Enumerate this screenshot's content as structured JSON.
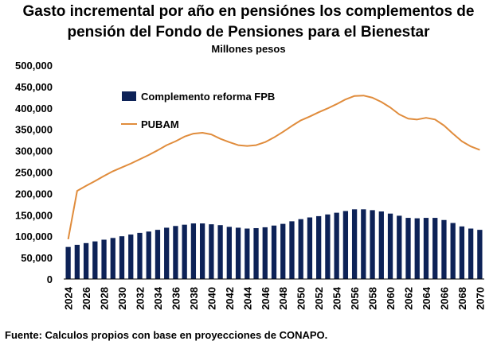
{
  "chart_data": {
    "type": "bar",
    "title": "Gasto incremental por año en pensiónes los complementos de pensión del Fondo de Pensiones para el Bienestar",
    "subtitle": "Millones pesos",
    "xlabel": "",
    "ylabel": "",
    "ylim": [
      0,
      500000
    ],
    "yticks": [
      "0",
      "50,000",
      "100,000",
      "150,000",
      "200,000",
      "250,000",
      "300,000",
      "350,000",
      "400,000",
      "450,000",
      "500,000"
    ],
    "ytick_values": [
      0,
      50000,
      100000,
      150000,
      200000,
      250000,
      300000,
      350000,
      400000,
      450000,
      500000
    ],
    "x": [
      2024,
      2025,
      2026,
      2027,
      2028,
      2029,
      2030,
      2031,
      2032,
      2033,
      2034,
      2035,
      2036,
      2037,
      2038,
      2039,
      2040,
      2041,
      2042,
      2043,
      2044,
      2045,
      2046,
      2047,
      2048,
      2049,
      2050,
      2051,
      2052,
      2053,
      2054,
      2055,
      2056,
      2057,
      2058,
      2059,
      2060,
      2061,
      2062,
      2063,
      2064,
      2065,
      2066,
      2067,
      2068,
      2069,
      2070
    ],
    "xtick_labels": [
      "2024",
      "2026",
      "2028",
      "2030",
      "2032",
      "2034",
      "2036",
      "2038",
      "2040",
      "2042",
      "2044",
      "2046",
      "2048",
      "2050",
      "2052",
      "2054",
      "2056",
      "2058",
      "2060",
      "2062",
      "2064",
      "2066",
      "2068",
      "2070"
    ],
    "series": [
      {
        "name": "Complemento reforma FPB",
        "kind": "bar",
        "color": "#0d2257",
        "values": [
          75000,
          80000,
          84000,
          88000,
          92000,
          96000,
          100000,
          104000,
          108000,
          111000,
          115000,
          120000,
          124000,
          127000,
          130000,
          130000,
          128000,
          126000,
          122000,
          120000,
          118000,
          119000,
          121000,
          125000,
          129000,
          135000,
          140000,
          144000,
          147000,
          151000,
          155000,
          159000,
          163000,
          163000,
          161000,
          158000,
          153000,
          148000,
          143000,
          142000,
          143000,
          143000,
          138000,
          131000,
          123000,
          118000,
          115000
        ]
      },
      {
        "name": "PUBAM",
        "kind": "line",
        "color": "#e08c3c",
        "values": [
          93000,
          206000,
          218000,
          229000,
          241000,
          252000,
          261000,
          270000,
          280000,
          290000,
          301000,
          313000,
          322000,
          333000,
          340000,
          342000,
          338000,
          328000,
          320000,
          313000,
          311000,
          313000,
          320000,
          331000,
          344000,
          358000,
          371000,
          380000,
          390000,
          399000,
          409000,
          420000,
          428000,
          429000,
          424000,
          414000,
          401000,
          385000,
          375000,
          373000,
          377000,
          373000,
          359000,
          340000,
          322000,
          310000,
          302000
        ]
      }
    ],
    "legend": {
      "placement": "top-left"
    },
    "grid": false
  },
  "source_note": "Fuente: Calculos propios con base en proyecciones de CONAPO."
}
